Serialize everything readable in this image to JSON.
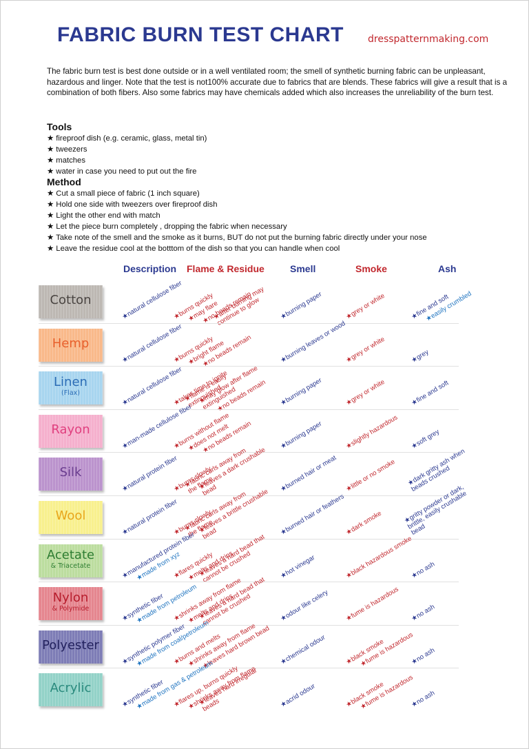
{
  "header": {
    "title": "FABRIC BURN TEST CHART",
    "site": "dresspatternmaking.com"
  },
  "intro": "The fabric burn test is best done outside or in a well ventilated room; the smell of synthetic burning fabric can be unpleasant, hazardous and linger.  Note that the test is not100% accurate due to fabrics that are blends. These fabrics will give a result that is a combination of both fibers.  Also some fabrics may have chemicals added which also increases the unreliability of the burn test.",
  "tools": {
    "heading": "Tools",
    "items": [
      "fireproof dish (e.g. ceramic, glass, metal tin)",
      "tweezers",
      "matches",
      "water in case you need to put out the fire"
    ]
  },
  "method": {
    "heading": "Method",
    "items": [
      "Cut a small piece of fabric (1 inch square)",
      "Hold one side with tweezers over fireproof dish",
      "Light the other end with match",
      "Let the piece burn completely ,  dropping the fabric when necessary",
      "Take note of the smell and the smoke as it burns,  BUT do not put the burning fabric directly under your nose",
      "Leave the residue cool at the botttom of the dish so that you can handle when cool"
    ]
  },
  "columns": {
    "description": "Description",
    "flame": "Flame & Residue",
    "smell": "Smell",
    "smoke": "Smoke",
    "ash": "Ash"
  },
  "rows": [
    {
      "name": "Cotton",
      "color": "#bdb8b3",
      "text_color": "#4a4542",
      "description": [
        "natural cellulose fiber"
      ],
      "flame": [
        "burns quickly",
        "may flare",
        "no beads remain",
        "after burning may continue to glow"
      ],
      "smell": [
        "burning paper"
      ],
      "smoke": [
        "grey or white"
      ],
      "ash": [
        "fine and soft",
        "easily crumbled"
      ]
    },
    {
      "name": "Hemp",
      "color": "#f9b98a",
      "text_color": "#e8602c",
      "description": [
        "natural cellulose fiber"
      ],
      "flame": [
        "burns quickly",
        "bright flame",
        "no beads remain"
      ],
      "smell": [
        "burning leaves or wood"
      ],
      "smoke": [
        "grey or white"
      ],
      "ash": [
        "grey"
      ]
    },
    {
      "name": "Linen",
      "sub": "(Flax)",
      "color": "#a8d5ef",
      "text_color": "#2b6cb5",
      "description": [
        "natural cellulose fiber"
      ],
      "flame": [
        "takes time to ignite",
        "flame is easily extinguished",
        "may glow after flame extinguished",
        "no beads remain"
      ],
      "smell": [
        "burning paper"
      ],
      "smoke": [
        "grey or white"
      ],
      "ash": [
        "fine and soft"
      ]
    },
    {
      "name": "Rayon",
      "color": "#f5b0cd",
      "text_color": "#e0407f",
      "description": [
        "man-made cellulose fiber"
      ],
      "flame": [
        "burns without flame",
        "does not melt",
        "no beads remain"
      ],
      "smell": [
        "burning paper"
      ],
      "smoke": [
        "slightly hazardous"
      ],
      "ash": [
        "soft grey"
      ]
    },
    {
      "name": "Silk",
      "color": "#bb93cd",
      "text_color": "#6a3d8f",
      "description": [
        "natural protein fiber"
      ],
      "flame": [
        "burns slowly",
        "fabric curls away from the flame",
        "leaves a dark crushable bead"
      ],
      "smell": [
        "burned hair or meat"
      ],
      "smoke": [
        "little or no smoke"
      ],
      "ash": [
        "dark gritty ash when beads crushed"
      ]
    },
    {
      "name": "Wool",
      "color": "#f8f08e",
      "text_color": "#e8a51b",
      "description": [
        "natural protein fiber"
      ],
      "flame": [
        "burns slowly",
        "fabric curls away from the flame",
        "leaves a brittle crushable bead"
      ],
      "smell": [
        "burned hair or feathers"
      ],
      "smoke": [
        "dark smoke"
      ],
      "ash": [
        "gritty powder or dark, brittle, easily crushable bead"
      ]
    },
    {
      "name": "Acetate",
      "sub": "& Triacetate",
      "color": "#bcdd9f",
      "text_color": "#2e7d32",
      "description": [
        "manufactured protein fiber",
        "made from xyz"
      ],
      "flame": [
        "flares quickly",
        "melts and drips",
        "leaves a hard bead that cannot be crushed"
      ],
      "smell": [
        "hot vinegar"
      ],
      "smoke": [
        "black hazardous smoke"
      ],
      "ash": [
        "no ash"
      ]
    },
    {
      "name": "Nylon",
      "sub": "& Polymide",
      "color": "#e5868f",
      "text_color": "#b71c2c",
      "description": [
        "synthetic fiber",
        "made from petroleum"
      ],
      "flame": [
        "shrinks away from flame",
        "melts and drips",
        "leaves a hard bead that cannot be crushed"
      ],
      "smell": [
        "odour like celery"
      ],
      "smoke": [
        "fume is hazardous"
      ],
      "ash": [
        "no ash"
      ]
    },
    {
      "name": "Polyester",
      "color": "#7e7db6",
      "text_color": "#23225e",
      "description": [
        "synthetic polymer fiber",
        "made from coal/petroleum"
      ],
      "flame": [
        "burns and melts",
        "shrinks away from flame",
        "leaves hard brown bead"
      ],
      "smell": [
        "chemical odour"
      ],
      "smoke": [
        "black smoke",
        "fume is hazardous"
      ],
      "ash": [
        "no ash"
      ]
    },
    {
      "name": "Acrylic",
      "color": "#93d2c8",
      "text_color": "#2a8a7d",
      "description": [
        "synthetic fiber",
        "made from gas & petroleum"
      ],
      "flame": [
        "flares up, burns quickly",
        "shrinks away from flame",
        "leaves hard irregular beads"
      ],
      "smell": [
        "acrid odour"
      ],
      "smoke": [
        "black smoke",
        "fume is hazardous"
      ],
      "ash": [
        "no ash"
      ]
    }
  ]
}
